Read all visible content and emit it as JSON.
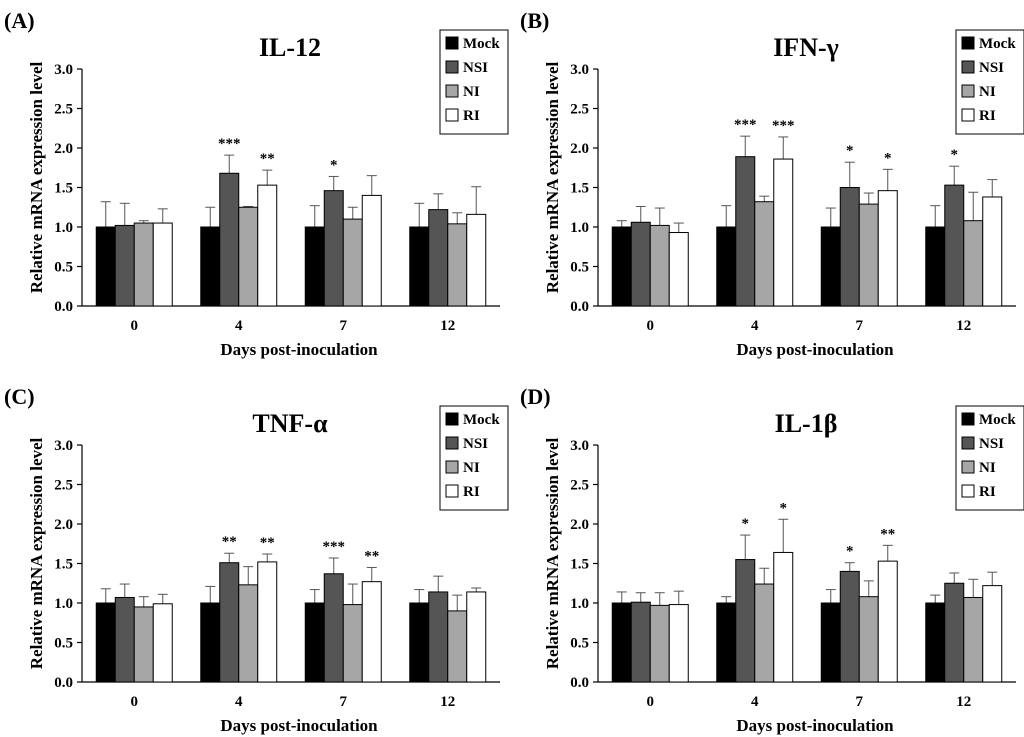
{
  "legend": {
    "labels": [
      "Mock",
      "NSI",
      "NI",
      "RI"
    ],
    "colors": [
      "#000000",
      "#555555",
      "#a6a6a6",
      "#ffffff"
    ]
  },
  "chart_data": [
    {
      "type": "bar",
      "panel_label": "(A)",
      "title": "IL-12",
      "xlabel": "Days post-inoculation",
      "ylabel": "Relative mRNA expression level",
      "ylim": [
        0,
        3.0
      ],
      "yticks": [
        "0.0",
        "0.5",
        "1.0",
        "1.5",
        "2.0",
        "2.5",
        "3.0"
      ],
      "categories": [
        "0",
        "4",
        "7",
        "12"
      ],
      "series": [
        {
          "name": "Mock",
          "values": [
            1.0,
            1.0,
            1.0,
            1.0
          ],
          "errors": [
            0.32,
            0.25,
            0.27,
            0.3
          ]
        },
        {
          "name": "NSI",
          "values": [
            1.02,
            1.68,
            1.46,
            1.22
          ],
          "errors": [
            0.28,
            0.23,
            0.18,
            0.2
          ]
        },
        {
          "name": "NI",
          "values": [
            1.05,
            1.25,
            1.1,
            1.04
          ],
          "errors": [
            0.03,
            0.01,
            0.15,
            0.14
          ]
        },
        {
          "name": "RI",
          "values": [
            1.05,
            1.53,
            1.4,
            1.16
          ],
          "errors": [
            0.18,
            0.19,
            0.25,
            0.35
          ]
        }
      ],
      "significance": [
        {
          "category": "4",
          "series": "NSI",
          "label": "***"
        },
        {
          "category": "4",
          "series": "RI",
          "label": "**"
        },
        {
          "category": "7",
          "series": "NSI",
          "label": "*"
        }
      ]
    },
    {
      "type": "bar",
      "panel_label": "(B)",
      "title": "IFN-γ",
      "xlabel": "Days post-inoculation",
      "ylabel": "Relative mRNA expression level",
      "ylim": [
        0,
        3.0
      ],
      "yticks": [
        "0.0",
        "0.5",
        "1.0",
        "1.5",
        "2.0",
        "2.5",
        "3.0"
      ],
      "categories": [
        "0",
        "4",
        "7",
        "12"
      ],
      "series": [
        {
          "name": "Mock",
          "values": [
            1.0,
            1.0,
            1.0,
            1.0
          ],
          "errors": [
            0.08,
            0.27,
            0.24,
            0.27
          ]
        },
        {
          "name": "NSI",
          "values": [
            1.06,
            1.89,
            1.5,
            1.53
          ],
          "errors": [
            0.2,
            0.26,
            0.32,
            0.24
          ]
        },
        {
          "name": "NI",
          "values": [
            1.02,
            1.32,
            1.29,
            1.08
          ],
          "errors": [
            0.22,
            0.07,
            0.14,
            0.36
          ]
        },
        {
          "name": "RI",
          "values": [
            0.93,
            1.86,
            1.46,
            1.38
          ],
          "errors": [
            0.12,
            0.28,
            0.27,
            0.22
          ]
        }
      ],
      "significance": [
        {
          "category": "4",
          "series": "NSI",
          "label": "***"
        },
        {
          "category": "4",
          "series": "RI",
          "label": "***"
        },
        {
          "category": "7",
          "series": "NSI",
          "label": "*"
        },
        {
          "category": "7",
          "series": "RI",
          "label": "*"
        },
        {
          "category": "12",
          "series": "NSI",
          "label": "*"
        }
      ]
    },
    {
      "type": "bar",
      "panel_label": "(C)",
      "title": "TNF-α",
      "xlabel": "Days post-inoculation",
      "ylabel": "Relative mRNA expression level",
      "ylim": [
        0,
        3.0
      ],
      "yticks": [
        "0.0",
        "0.5",
        "1.0",
        "1.5",
        "2.0",
        "2.5",
        "3.0"
      ],
      "categories": [
        "0",
        "4",
        "7",
        "12"
      ],
      "series": [
        {
          "name": "Mock",
          "values": [
            1.0,
            1.0,
            1.0,
            1.0
          ],
          "errors": [
            0.18,
            0.21,
            0.17,
            0.17
          ]
        },
        {
          "name": "NSI",
          "values": [
            1.07,
            1.51,
            1.37,
            1.14
          ],
          "errors": [
            0.17,
            0.12,
            0.2,
            0.2
          ]
        },
        {
          "name": "NI",
          "values": [
            0.95,
            1.23,
            0.98,
            0.9
          ],
          "errors": [
            0.13,
            0.23,
            0.26,
            0.2
          ]
        },
        {
          "name": "RI",
          "values": [
            0.99,
            1.52,
            1.27,
            1.14
          ],
          "errors": [
            0.12,
            0.1,
            0.18,
            0.05
          ]
        }
      ],
      "significance": [
        {
          "category": "4",
          "series": "NSI",
          "label": "**"
        },
        {
          "category": "4",
          "series": "RI",
          "label": "**"
        },
        {
          "category": "7",
          "series": "NSI",
          "label": "***"
        },
        {
          "category": "7",
          "series": "RI",
          "label": "**"
        }
      ]
    },
    {
      "type": "bar",
      "panel_label": "(D)",
      "title": "IL-1β",
      "xlabel": "Days post-inoculation",
      "ylabel": "Relative mRNA expression level",
      "ylim": [
        0,
        3.0
      ],
      "yticks": [
        "0.0",
        "0.5",
        "1.0",
        "1.5",
        "2.0",
        "2.5",
        "3.0"
      ],
      "categories": [
        "0",
        "4",
        "7",
        "12"
      ],
      "series": [
        {
          "name": "Mock",
          "values": [
            1.0,
            1.0,
            1.0,
            1.0
          ],
          "errors": [
            0.14,
            0.08,
            0.17,
            0.1
          ]
        },
        {
          "name": "NSI",
          "values": [
            1.01,
            1.55,
            1.4,
            1.25
          ],
          "errors": [
            0.12,
            0.31,
            0.11,
            0.13
          ]
        },
        {
          "name": "NI",
          "values": [
            0.97,
            1.24,
            1.08,
            1.07
          ],
          "errors": [
            0.16,
            0.2,
            0.2,
            0.23
          ]
        },
        {
          "name": "RI",
          "values": [
            0.98,
            1.64,
            1.53,
            1.22
          ],
          "errors": [
            0.17,
            0.42,
            0.2,
            0.17
          ]
        }
      ],
      "significance": [
        {
          "category": "4",
          "series": "NSI",
          "label": "*"
        },
        {
          "category": "4",
          "series": "RI",
          "label": "*"
        },
        {
          "category": "7",
          "series": "NSI",
          "label": "*"
        },
        {
          "category": "7",
          "series": "RI",
          "label": "**"
        }
      ]
    }
  ]
}
